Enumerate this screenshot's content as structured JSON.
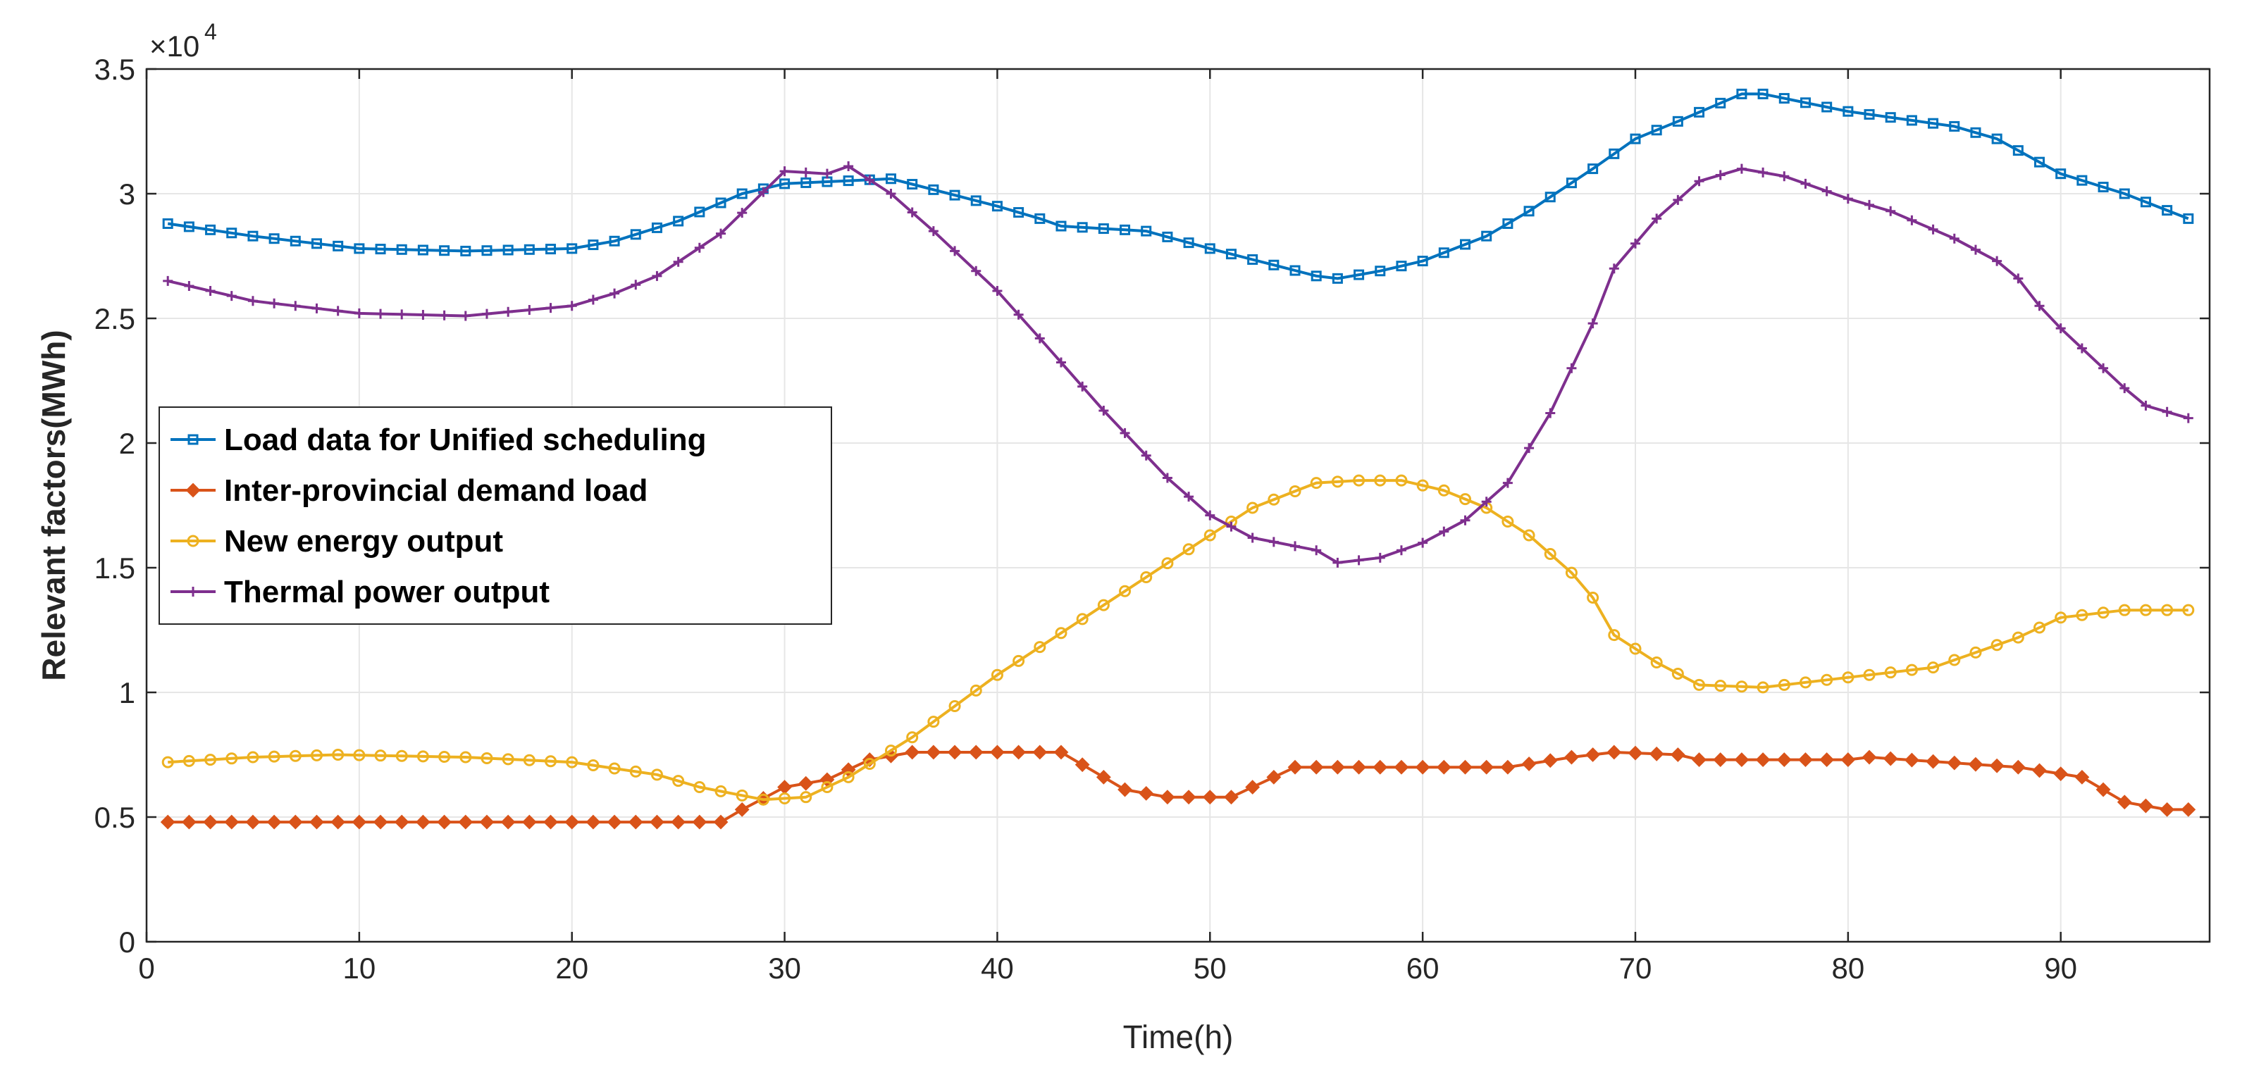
{
  "chart_data": {
    "type": "line",
    "xlabel": "Time(h)",
    "ylabel": "Relevant factors(MWh)",
    "y_multiplier_label": "×10",
    "y_multiplier_exp": "4",
    "xlim": [
      0,
      97
    ],
    "ylim": [
      0,
      3.5
    ],
    "x_ticks": [
      0,
      10,
      20,
      30,
      40,
      50,
      60,
      70,
      80,
      90
    ],
    "y_ticks": [
      0,
      0.5,
      1,
      1.5,
      2,
      2.5,
      3,
      3.5
    ],
    "y_tick_labels": [
      "0",
      "0.5",
      "1",
      "1.5",
      "2",
      "2.5",
      "3",
      "3.5"
    ],
    "grid": true,
    "legend_position": "middle-left",
    "series": [
      {
        "name": "Load data for Unified scheduling",
        "color": "#0072BD",
        "marker": "square",
        "anchors": [
          [
            1,
            2.88
          ],
          [
            5,
            2.83
          ],
          [
            10,
            2.78
          ],
          [
            15,
            2.77
          ],
          [
            20,
            2.78
          ],
          [
            22,
            2.81
          ],
          [
            25,
            2.89
          ],
          [
            28,
            3.0
          ],
          [
            30,
            3.04
          ],
          [
            35,
            3.06
          ],
          [
            40,
            2.95
          ],
          [
            42,
            2.9
          ],
          [
            43,
            2.87
          ],
          [
            47,
            2.85
          ],
          [
            50,
            2.78
          ],
          [
            55,
            2.67
          ],
          [
            56,
            2.66
          ],
          [
            58,
            2.69
          ],
          [
            60,
            2.73
          ],
          [
            63,
            2.83
          ],
          [
            65,
            2.93
          ],
          [
            68,
            3.1
          ],
          [
            70,
            3.22
          ],
          [
            72,
            3.29
          ],
          [
            75,
            3.4
          ],
          [
            76,
            3.4
          ],
          [
            80,
            3.33
          ],
          [
            85,
            3.27
          ],
          [
            87,
            3.22
          ],
          [
            90,
            3.08
          ],
          [
            93,
            3.0
          ],
          [
            96,
            2.9
          ]
        ]
      },
      {
        "name": "Inter-provincial demand load",
        "color": "#D95319",
        "marker": "diamond",
        "anchors": [
          [
            1,
            0.48
          ],
          [
            27,
            0.48
          ],
          [
            28,
            0.53
          ],
          [
            30,
            0.62
          ],
          [
            32,
            0.65
          ],
          [
            34,
            0.73
          ],
          [
            36,
            0.76
          ],
          [
            43,
            0.76
          ],
          [
            45,
            0.66
          ],
          [
            46,
            0.61
          ],
          [
            48,
            0.58
          ],
          [
            51,
            0.58
          ],
          [
            54,
            0.7
          ],
          [
            64,
            0.7
          ],
          [
            67,
            0.74
          ],
          [
            69,
            0.76
          ],
          [
            72,
            0.75
          ],
          [
            73,
            0.73
          ],
          [
            80,
            0.73
          ],
          [
            81,
            0.74
          ],
          [
            88,
            0.7
          ],
          [
            91,
            0.66
          ],
          [
            93,
            0.56
          ],
          [
            95,
            0.53
          ],
          [
            96,
            0.53
          ]
        ]
      },
      {
        "name": "New energy output",
        "color": "#EDB120",
        "marker": "circle",
        "anchors": [
          [
            1,
            0.72
          ],
          [
            5,
            0.74
          ],
          [
            9,
            0.75
          ],
          [
            15,
            0.74
          ],
          [
            20,
            0.72
          ],
          [
            24,
            0.67
          ],
          [
            26,
            0.62
          ],
          [
            29,
            0.57
          ],
          [
            31,
            0.58
          ],
          [
            33,
            0.66
          ],
          [
            36,
            0.82
          ],
          [
            40,
            1.07
          ],
          [
            45,
            1.35
          ],
          [
            50,
            1.63
          ],
          [
            52,
            1.74
          ],
          [
            55,
            1.84
          ],
          [
            57,
            1.85
          ],
          [
            59,
            1.85
          ],
          [
            61,
            1.81
          ],
          [
            63,
            1.74
          ],
          [
            65,
            1.63
          ],
          [
            67,
            1.48
          ],
          [
            68,
            1.38
          ],
          [
            69,
            1.23
          ],
          [
            71,
            1.12
          ],
          [
            73,
            1.03
          ],
          [
            76,
            1.02
          ],
          [
            80,
            1.06
          ],
          [
            84,
            1.1
          ],
          [
            88,
            1.22
          ],
          [
            90,
            1.3
          ],
          [
            93,
            1.33
          ],
          [
            96,
            1.33
          ]
        ]
      },
      {
        "name": "Thermal power output",
        "color": "#7E2F8E",
        "marker": "plus",
        "anchors": [
          [
            1,
            2.65
          ],
          [
            5,
            2.57
          ],
          [
            10,
            2.52
          ],
          [
            15,
            2.51
          ],
          [
            20,
            2.55
          ],
          [
            22,
            2.6
          ],
          [
            24,
            2.67
          ],
          [
            27,
            2.84
          ],
          [
            30,
            3.09
          ],
          [
            32,
            3.08
          ],
          [
            33,
            3.11
          ],
          [
            35,
            3.0
          ],
          [
            37,
            2.85
          ],
          [
            40,
            2.61
          ],
          [
            42,
            2.42
          ],
          [
            45,
            2.13
          ],
          [
            48,
            1.86
          ],
          [
            50,
            1.71
          ],
          [
            52,
            1.62
          ],
          [
            55,
            1.57
          ],
          [
            56,
            1.52
          ],
          [
            58,
            1.54
          ],
          [
            60,
            1.6
          ],
          [
            62,
            1.69
          ],
          [
            64,
            1.84
          ],
          [
            66,
            2.12
          ],
          [
            68,
            2.48
          ],
          [
            69,
            2.7
          ],
          [
            71,
            2.9
          ],
          [
            73,
            3.05
          ],
          [
            75,
            3.1
          ],
          [
            77,
            3.07
          ],
          [
            80,
            2.98
          ],
          [
            82,
            2.93
          ],
          [
            85,
            2.82
          ],
          [
            87,
            2.73
          ],
          [
            88,
            2.66
          ],
          [
            89,
            2.55
          ],
          [
            90,
            2.46
          ],
          [
            92,
            2.3
          ],
          [
            93,
            2.22
          ],
          [
            94,
            2.15
          ],
          [
            96,
            2.1
          ]
        ]
      }
    ]
  }
}
